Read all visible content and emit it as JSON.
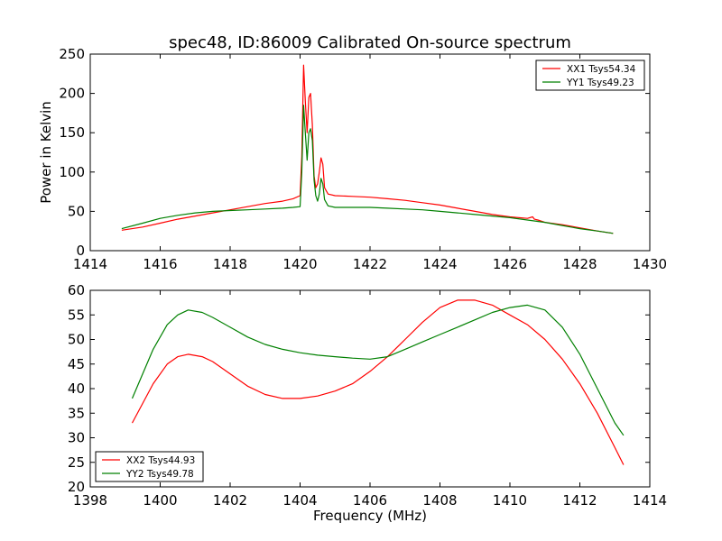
{
  "figure": {
    "title": "spec48, ID:86009 Calibrated On-source spectrum"
  },
  "chart_data": [
    {
      "type": "line",
      "title": "spec48, ID:86009 Calibrated On-source spectrum",
      "xlabel": "",
      "ylabel": "Power in Kelvin",
      "xlim": [
        1414,
        1430
      ],
      "ylim": [
        0,
        250
      ],
      "xticks": [
        "1414",
        "1416",
        "1418",
        "1420",
        "1422",
        "1424",
        "1426",
        "1428",
        "1430"
      ],
      "yticks": [
        "0",
        "50",
        "100",
        "150",
        "200",
        "250"
      ],
      "grid": false,
      "legend": "top-right",
      "series": [
        {
          "name": "XX1 Tsys54.34",
          "color": "#ff0000",
          "x": [
            1414.9,
            1415.5,
            1416,
            1416.5,
            1417,
            1417.5,
            1418,
            1418.5,
            1419,
            1419.5,
            1419.8,
            1420.0,
            1420.05,
            1420.1,
            1420.15,
            1420.2,
            1420.25,
            1420.3,
            1420.35,
            1420.4,
            1420.45,
            1420.5,
            1420.55,
            1420.6,
            1420.65,
            1420.7,
            1420.8,
            1421,
            1421.5,
            1422,
            1422.5,
            1423,
            1423.5,
            1424,
            1424.5,
            1425,
            1425.5,
            1426,
            1426.5,
            1426.65,
            1426.7,
            1426.8,
            1427,
            1427.5,
            1428,
            1428.5,
            1428.95
          ],
          "y": [
            26,
            30,
            35,
            40,
            44,
            48,
            52,
            56,
            60,
            63,
            66,
            70,
            120,
            236,
            190,
            150,
            195,
            200,
            160,
            95,
            80,
            85,
            100,
            118,
            110,
            80,
            72,
            70,
            69,
            68,
            66,
            64,
            61,
            58,
            54,
            50,
            46,
            43,
            41,
            43,
            40,
            39,
            36,
            33,
            29,
            25,
            22
          ]
        },
        {
          "name": "YY1 Tsys49.23",
          "color": "#008000",
          "x": [
            1414.9,
            1415.5,
            1416,
            1416.5,
            1417,
            1417.5,
            1418,
            1418.5,
            1419,
            1419.5,
            1419.8,
            1420.0,
            1420.05,
            1420.1,
            1420.15,
            1420.2,
            1420.25,
            1420.3,
            1420.35,
            1420.4,
            1420.45,
            1420.5,
            1420.55,
            1420.6,
            1420.65,
            1420.7,
            1420.8,
            1421,
            1421.5,
            1422,
            1422.5,
            1423,
            1423.5,
            1424,
            1424.5,
            1425,
            1425.5,
            1426,
            1426.5,
            1427,
            1427.5,
            1428,
            1428.5,
            1428.95
          ],
          "y": [
            28,
            35,
            41,
            45,
            48,
            50,
            51,
            52,
            53,
            54,
            55,
            56,
            100,
            185,
            150,
            115,
            150,
            155,
            140,
            90,
            70,
            63,
            72,
            92,
            85,
            65,
            57,
            55,
            55,
            55,
            54,
            53,
            52,
            50,
            48,
            46,
            44,
            42,
            39,
            36,
            32,
            28,
            25,
            22
          ]
        }
      ]
    },
    {
      "type": "line",
      "title": "",
      "xlabel": "Frequency (MHz)",
      "ylabel": "",
      "xlim": [
        1398,
        1414
      ],
      "ylim": [
        20,
        60
      ],
      "xticks": [
        "1398",
        "1400",
        "1402",
        "1404",
        "1406",
        "1408",
        "1410",
        "1412",
        "1414"
      ],
      "yticks": [
        "20",
        "25",
        "30",
        "35",
        "40",
        "45",
        "50",
        "55",
        "60"
      ],
      "grid": false,
      "legend": "bottom-left",
      "series": [
        {
          "name": "XX2 Tsys44.93",
          "color": "#ff0000",
          "x": [
            1399.2,
            1399.5,
            1399.8,
            1400.2,
            1400.5,
            1400.8,
            1401.2,
            1401.5,
            1402,
            1402.5,
            1403,
            1403.5,
            1404,
            1404.5,
            1405,
            1405.5,
            1406,
            1406.5,
            1407,
            1407.5,
            1408,
            1408.5,
            1409,
            1409.5,
            1410,
            1410.5,
            1411,
            1411.5,
            1412,
            1412.5,
            1413,
            1413.25
          ],
          "y": [
            33,
            37,
            41,
            45,
            46.5,
            47,
            46.5,
            45.5,
            43,
            40.5,
            38.8,
            38,
            38,
            38.5,
            39.5,
            41,
            43.5,
            46.5,
            50,
            53.5,
            56.5,
            58,
            58,
            57,
            55,
            53,
            50,
            46,
            41,
            35,
            28,
            24.5
          ]
        },
        {
          "name": "YY2 Tsys49.78",
          "color": "#008000",
          "x": [
            1399.2,
            1399.5,
            1399.8,
            1400.2,
            1400.5,
            1400.8,
            1401.2,
            1401.5,
            1402,
            1402.5,
            1403,
            1403.5,
            1404,
            1404.5,
            1405,
            1405.5,
            1406,
            1406.5,
            1407,
            1407.5,
            1408,
            1408.5,
            1409,
            1409.5,
            1410,
            1410.5,
            1411,
            1411.5,
            1412,
            1412.5,
            1413,
            1413.25
          ],
          "y": [
            38,
            43,
            48,
            53,
            55,
            56,
            55.5,
            54.5,
            52.5,
            50.5,
            49,
            48,
            47.3,
            46.8,
            46.5,
            46.2,
            46,
            46.5,
            48,
            49.5,
            51,
            52.5,
            54,
            55.5,
            56.5,
            57,
            56,
            52.5,
            47,
            40,
            33,
            30.5
          ]
        }
      ]
    }
  ]
}
